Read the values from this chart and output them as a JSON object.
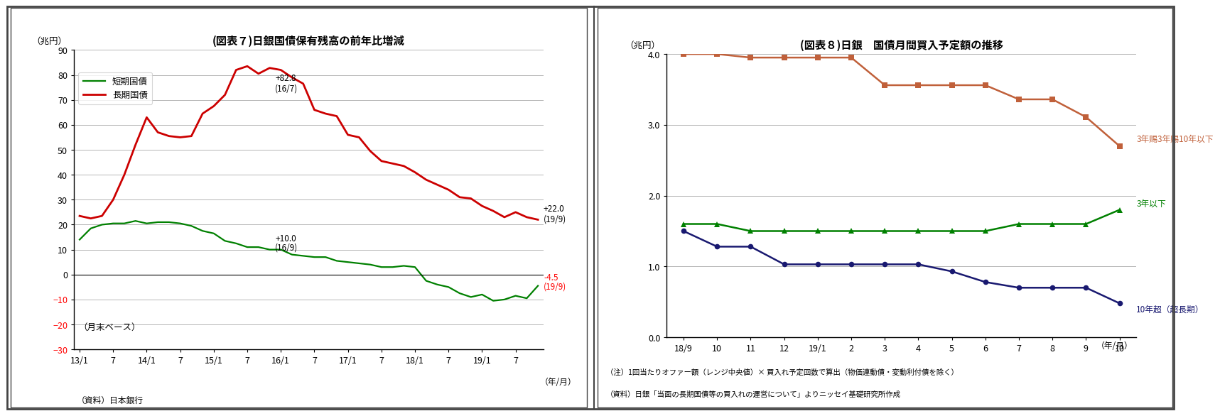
{
  "chart1": {
    "title": "(図表７)日銀国債保有残高の前年比増減",
    "ylabel": "（兆円）",
    "xlabel_note": "（資料）日本銀行",
    "year_label": "（年/月）",
    "bottom_note": "（月末ベース）",
    "ylim": [
      -30,
      90
    ],
    "yticks": [
      -30,
      -20,
      -10,
      0,
      10,
      20,
      30,
      40,
      50,
      60,
      70,
      80,
      90
    ],
    "xtick_labels": [
      "13/1",
      "7",
      "14/1",
      "7",
      "15/1",
      "7",
      "16/1",
      "7",
      "17/1",
      "7",
      "18/1",
      "7",
      "19/1",
      "7"
    ],
    "long_bond": [
      23.5,
      22.5,
      23.5,
      30.0,
      40.0,
      52.0,
      63.0,
      57.0,
      55.5,
      55.0,
      55.5,
      64.5,
      67.5,
      72.0,
      82.0,
      83.5,
      80.5,
      82.8,
      82.0,
      79.0,
      76.5,
      66.0,
      64.5,
      63.5,
      56.0,
      55.0,
      49.5,
      45.5,
      44.5,
      43.5,
      41.0,
      38.0,
      36.0,
      34.0,
      31.0,
      30.5,
      27.5,
      25.5,
      23.0,
      25.0,
      23.0,
      22.0
    ],
    "short_bond": [
      14.0,
      18.5,
      20.0,
      20.5,
      20.5,
      21.5,
      20.5,
      21.0,
      21.0,
      20.5,
      19.5,
      17.5,
      16.5,
      13.5,
      12.5,
      11.0,
      11.0,
      10.0,
      10.0,
      8.0,
      7.5,
      7.0,
      7.0,
      5.5,
      5.0,
      4.5,
      4.0,
      3.0,
      3.0,
      3.5,
      3.0,
      -2.5,
      -4.0,
      -5.0,
      -7.5,
      -9.0,
      -8.0,
      -10.5,
      -10.0,
      -8.5,
      -9.5,
      -4.5
    ],
    "long_color": "#cc0000",
    "short_color": "#008000",
    "legend_label_short": "短期国債",
    "legend_label_long": "長期国債",
    "annot_peak_val": "+82.8",
    "annot_peak_date": "(16/7)",
    "annot_short_peak_val": "+10.0",
    "annot_short_peak_date": "(16/9)",
    "annot_end_long_val": "+22.0",
    "annot_end_long_date": "(19/9)",
    "annot_end_short_val": "-4.5",
    "annot_end_short_date": "(19/9)"
  },
  "chart2": {
    "title": "(図表８)日銀　国債月間買入予定額の推移",
    "ylabel": "（兆円）",
    "year_label": "（年/月）",
    "note1": "（注）1回当たりオファー額（レンジ中央値）× 買入れ予定回数で算出（物価連動債・変動利付債を除く）",
    "note2": "（資料）日銀「当面の長期国債等の買入れの運営について」よりニッセイ基礎研究所作成",
    "ylim": [
      0.0,
      4.0
    ],
    "yticks": [
      0.0,
      1.0,
      2.0,
      3.0,
      4.0
    ],
    "xtick_labels": [
      "18/9",
      "10",
      "11",
      "12",
      "19/1",
      "2",
      "3",
      "4",
      "5",
      "6",
      "7",
      "8",
      "9",
      "10"
    ],
    "series_3y10y": [
      4.0,
      4.0,
      3.95,
      3.95,
      3.95,
      3.95,
      3.56,
      3.56,
      3.56,
      3.56,
      3.36,
      3.36,
      3.11,
      2.7
    ],
    "series_3y": [
      1.6,
      1.6,
      1.5,
      1.5,
      1.5,
      1.5,
      1.5,
      1.5,
      1.5,
      1.5,
      1.6,
      1.6,
      1.6,
      1.8
    ],
    "series_over10y": [
      1.5,
      1.28,
      1.28,
      1.03,
      1.03,
      1.03,
      1.03,
      1.03,
      0.93,
      0.78,
      0.7,
      0.7,
      0.7,
      0.48
    ],
    "color_3y10y": "#c0603a",
    "color_3y": "#008000",
    "color_over10y": "#191970",
    "label_3y10y": "3年赐3年赐10年以下",
    "label_3y": "3年以下",
    "label_over10y": "10年超（超長期）"
  }
}
